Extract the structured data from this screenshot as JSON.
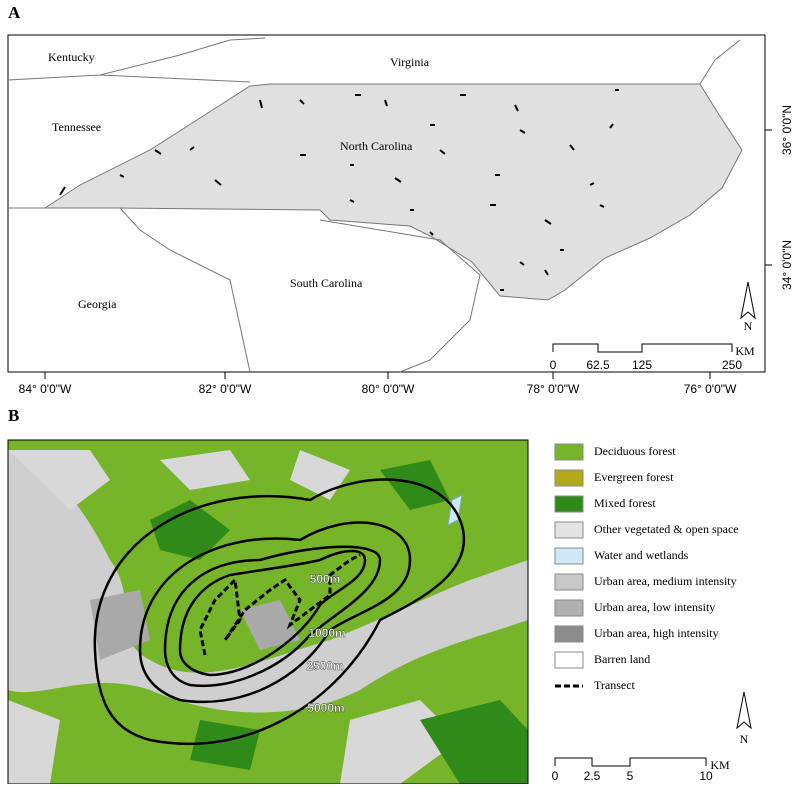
{
  "panel_a": {
    "label": "A",
    "states": [
      "Kentucky",
      "Virginia",
      "Tennessee",
      "North Carolina",
      "South Carolina",
      "Georgia"
    ],
    "lon_labels": [
      "84° 0'0\"W",
      "82° 0'0\"W",
      "80° 0'0\"W",
      "78° 0'0\"W",
      "76° 0'0\"W"
    ],
    "lat_labels": [
      "36° 0'0\"N",
      "34° 0'0\"N"
    ],
    "north": "N",
    "scale": {
      "ticks": [
        "0",
        "62.5",
        "125",
        "250"
      ],
      "unit": "KM"
    }
  },
  "panel_b": {
    "label": "B",
    "legend": [
      "Deciduous forest",
      "Evergreen forest",
      "Mixed forest",
      "Other vegetated & open space",
      "Water and wetlands",
      "Urban area, medium intensity",
      "Urban area, low intensity",
      "Urban area, high intensity",
      "Barren land",
      "Transect"
    ],
    "buffers": [
      "500m",
      "1000m",
      "2500m",
      "5000m"
    ],
    "north": "N",
    "scale": {
      "ticks": [
        "0",
        "2.5",
        "5",
        "10"
      ],
      "unit": "KM"
    }
  }
}
